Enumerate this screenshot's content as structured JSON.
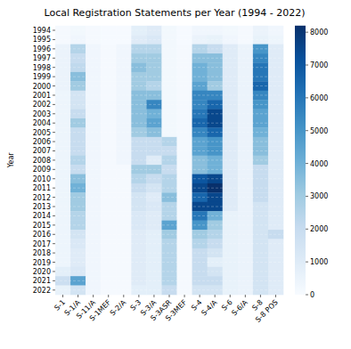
{
  "chart_data": {
    "type": "heatmap",
    "title": "Local Registration Statements per Year (1994 - 2022)",
    "y_label": "Year",
    "x": [
      "S-1",
      "S-1/A",
      "S-11/A",
      "S-1MEF",
      "S-2/A",
      "S-3",
      "S-3/A",
      "S-3ASR",
      "S-3MEF",
      "S-4",
      "S-4/A",
      "S-6",
      "S-6/A",
      "S-8",
      "S-8 POS"
    ],
    "y": [
      1994,
      1995,
      1996,
      1997,
      1998,
      1999,
      2000,
      2001,
      2002,
      2003,
      2004,
      2005,
      2006,
      2007,
      2008,
      2009,
      2010,
      2011,
      2012,
      2013,
      2014,
      2015,
      2016,
      2017,
      2018,
      2019,
      2020,
      2021,
      2022
    ],
    "values": [
      [
        100,
        200,
        100,
        50,
        50,
        800,
        1000,
        200,
        50,
        300,
        300,
        200,
        100,
        500,
        300
      ],
      [
        100,
        300,
        100,
        50,
        50,
        1000,
        1200,
        200,
        50,
        500,
        600,
        300,
        100,
        600,
        400
      ],
      [
        500,
        2500,
        300,
        100,
        300,
        2500,
        2500,
        200,
        100,
        2500,
        2000,
        1000,
        500,
        5000,
        1000
      ],
      [
        500,
        2000,
        300,
        100,
        300,
        3000,
        3000,
        200,
        100,
        3500,
        3500,
        1000,
        500,
        5500,
        1000
      ],
      [
        500,
        2200,
        300,
        100,
        300,
        3500,
        3000,
        200,
        100,
        4000,
        3500,
        1000,
        500,
        6000,
        1000
      ],
      [
        500,
        3500,
        300,
        100,
        300,
        3000,
        3000,
        200,
        100,
        4000,
        3500,
        1000,
        500,
        6000,
        1000
      ],
      [
        500,
        3000,
        300,
        100,
        300,
        3000,
        2500,
        200,
        100,
        4500,
        3000,
        1000,
        500,
        6500,
        1000
      ],
      [
        400,
        1500,
        300,
        100,
        300,
        3500,
        3500,
        200,
        100,
        5500,
        5500,
        1000,
        500,
        5500,
        1000
      ],
      [
        400,
        1500,
        300,
        100,
        300,
        3500,
        5500,
        200,
        100,
        5500,
        6500,
        1000,
        500,
        5000,
        1000
      ],
      [
        400,
        2000,
        300,
        100,
        300,
        3500,
        4000,
        200,
        100,
        6000,
        7500,
        1000,
        500,
        4500,
        1000
      ],
      [
        400,
        3000,
        300,
        100,
        300,
        3500,
        4500,
        200,
        100,
        6500,
        7500,
        1000,
        500,
        4500,
        1000
      ],
      [
        400,
        2000,
        300,
        100,
        300,
        3000,
        3500,
        200,
        100,
        5500,
        6500,
        1000,
        500,
        4000,
        1000
      ],
      [
        400,
        2000,
        300,
        100,
        300,
        2000,
        2000,
        2500,
        100,
        4500,
        5000,
        1000,
        500,
        3500,
        1000
      ],
      [
        400,
        2000,
        300,
        100,
        300,
        2000,
        2000,
        2000,
        100,
        4500,
        5000,
        1000,
        500,
        3500,
        1000
      ],
      [
        400,
        2500,
        300,
        100,
        300,
        2000,
        1000,
        2500,
        100,
        3500,
        4000,
        1000,
        500,
        3000,
        1000
      ],
      [
        400,
        2000,
        300,
        100,
        100,
        3000,
        3000,
        2000,
        100,
        3500,
        4000,
        1000,
        500,
        2000,
        1000
      ],
      [
        400,
        3500,
        300,
        100,
        100,
        2500,
        2000,
        2500,
        100,
        7000,
        7500,
        1000,
        500,
        2000,
        1000
      ],
      [
        400,
        4000,
        300,
        100,
        100,
        2000,
        1500,
        2500,
        100,
        7500,
        8200,
        1000,
        500,
        2000,
        1000
      ],
      [
        400,
        3000,
        300,
        100,
        100,
        1500,
        1000,
        3500,
        100,
        6500,
        7500,
        1000,
        500,
        2000,
        1000
      ],
      [
        400,
        3000,
        300,
        100,
        100,
        1500,
        1200,
        2500,
        100,
        7500,
        7500,
        1000,
        500,
        1500,
        1000
      ],
      [
        400,
        2500,
        300,
        100,
        100,
        1200,
        1000,
        2500,
        100,
        6000,
        4000,
        600,
        500,
        1500,
        1000
      ],
      [
        400,
        2500,
        300,
        100,
        100,
        1200,
        1000,
        4500,
        100,
        5000,
        3000,
        600,
        500,
        1500,
        1000
      ],
      [
        400,
        1500,
        300,
        100,
        100,
        1000,
        800,
        3000,
        100,
        3000,
        2500,
        600,
        500,
        1500,
        2000
      ],
      [
        400,
        1200,
        300,
        100,
        100,
        1000,
        800,
        2500,
        100,
        2500,
        2000,
        600,
        500,
        1500,
        1000
      ],
      [
        400,
        1000,
        300,
        100,
        100,
        1000,
        800,
        2500,
        100,
        2000,
        1500,
        600,
        500,
        1500,
        1000
      ],
      [
        400,
        1000,
        300,
        100,
        100,
        1000,
        800,
        2500,
        100,
        2000,
        800,
        600,
        500,
        1500,
        1000
      ],
      [
        800,
        1200,
        300,
        100,
        100,
        1000,
        800,
        2500,
        100,
        2000,
        1500,
        600,
        500,
        1500,
        1000
      ],
      [
        1800,
        4500,
        300,
        100,
        100,
        1000,
        800,
        2500,
        100,
        2000,
        2000,
        600,
        500,
        1500,
        1000
      ],
      [
        600,
        1500,
        300,
        100,
        100,
        800,
        800,
        2000,
        100,
        1500,
        1500,
        600,
        500,
        1500,
        1000
      ]
    ],
    "colorbar_lim": [
      0,
      8200
    ],
    "colorbar_ticks": [
      0,
      1000,
      2000,
      3000,
      4000,
      5000,
      6000,
      7000,
      8000
    ],
    "grid": true
  }
}
